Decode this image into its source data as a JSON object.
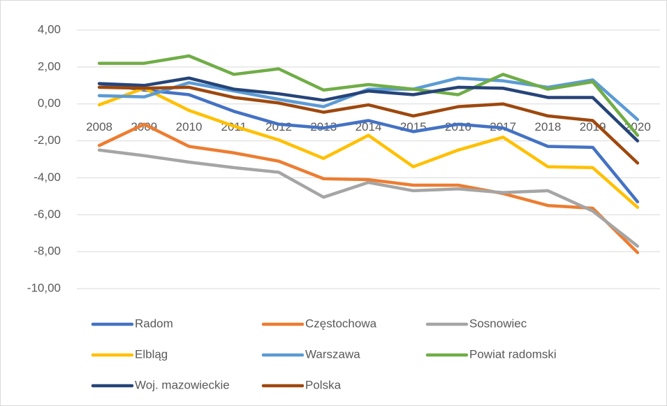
{
  "chart_data": {
    "type": "line",
    "categories": [
      "2008",
      "2009",
      "2010",
      "2011",
      "2012",
      "2013",
      "2014",
      "2015",
      "2016",
      "2017",
      "2018",
      "2019",
      "2020"
    ],
    "ylim": [
      -10,
      4
    ],
    "yticks": [
      {
        "value": 4,
        "label": "4,00"
      },
      {
        "value": 2,
        "label": "2,00"
      },
      {
        "value": 0,
        "label": "0,00"
      },
      {
        "value": -2,
        "label": "-2,00"
      },
      {
        "value": -4,
        "label": "-4,00"
      },
      {
        "value": -6,
        "label": "-6,00"
      },
      {
        "value": -8,
        "label": "-8,00"
      },
      {
        "value": -10,
        "label": "-10,00"
      }
    ],
    "grid": true,
    "legend": "bottom",
    "series": [
      {
        "name": "Radom",
        "color": "#4472c4",
        "values": [
          1.1,
          0.75,
          0.5,
          -0.4,
          -1.1,
          -1.3,
          -0.9,
          -1.5,
          -1.1,
          -1.3,
          -2.3,
          -2.35,
          -5.3
        ]
      },
      {
        "name": "Częstochowa",
        "color": "#ed7d31",
        "values": [
          -2.25,
          -1.1,
          -2.3,
          -2.65,
          -3.1,
          -4.05,
          -4.1,
          -4.4,
          -4.4,
          -4.85,
          -5.5,
          -5.65,
          -8.05
        ]
      },
      {
        "name": "Sosnowiec",
        "color": "#a5a5a5",
        "values": [
          -2.5,
          -2.8,
          -3.15,
          -3.45,
          -3.7,
          -5.05,
          -4.25,
          -4.7,
          -4.6,
          -4.8,
          -4.7,
          -5.8,
          -7.7
        ]
      },
      {
        "name": "Elbląg",
        "color": "#ffc000",
        "values": [
          -0.05,
          0.85,
          -0.35,
          -1.2,
          -1.95,
          -2.95,
          -1.7,
          -3.4,
          -2.5,
          -1.8,
          -3.4,
          -3.45,
          -5.6
        ]
      },
      {
        "name": "Warszawa",
        "color": "#5b9bd5",
        "values": [
          0.45,
          0.38,
          1.15,
          0.7,
          0.25,
          -0.15,
          0.8,
          0.8,
          1.4,
          1.25,
          0.9,
          1.3,
          -0.85
        ]
      },
      {
        "name": "Powiat radomski",
        "color": "#70ad47",
        "values": [
          2.2,
          2.2,
          2.6,
          1.6,
          1.9,
          0.75,
          1.05,
          0.8,
          0.5,
          1.6,
          0.8,
          1.2,
          -1.7
        ]
      },
      {
        "name": "Woj. mazowieckie",
        "color": "#264478",
        "values": [
          1.1,
          1.0,
          1.4,
          0.8,
          0.55,
          0.2,
          0.7,
          0.5,
          0.9,
          0.85,
          0.35,
          0.35,
          -2.0
        ]
      },
      {
        "name": "Polska",
        "color": "#9e480e",
        "values": [
          0.9,
          0.85,
          0.9,
          0.35,
          0.05,
          -0.45,
          -0.05,
          -0.65,
          -0.15,
          0,
          -0.65,
          -0.9,
          -3.2
        ]
      }
    ]
  }
}
